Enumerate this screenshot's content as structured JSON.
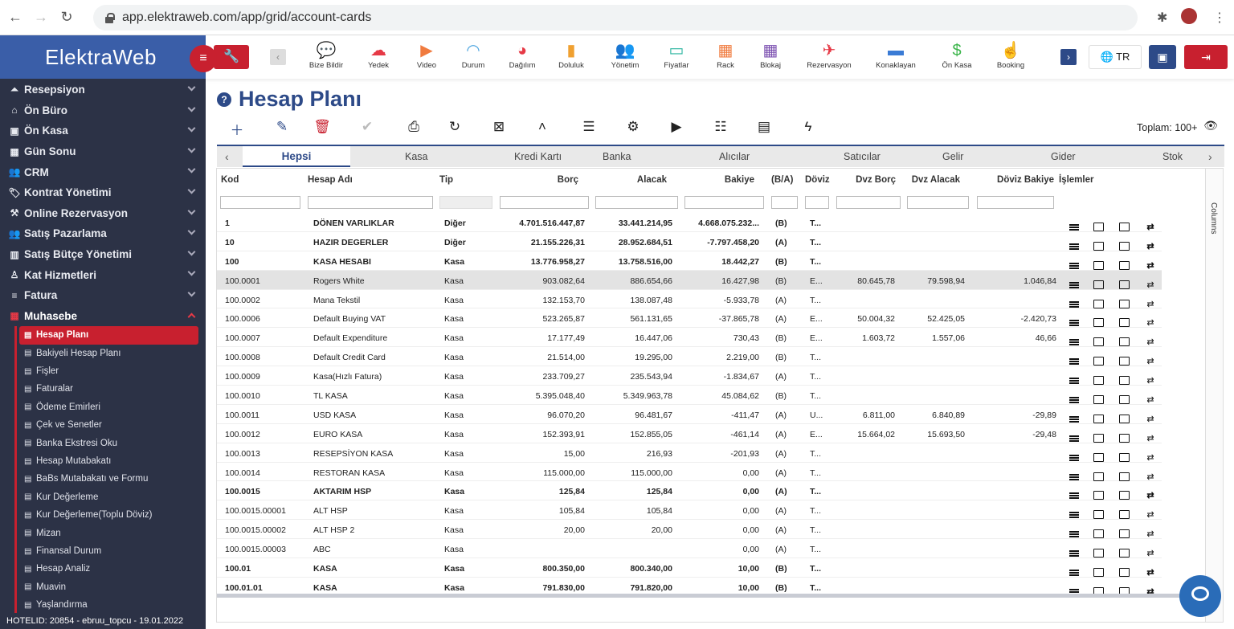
{
  "browser": {
    "url": "app.elektraweb.com/app/grid/account-cards"
  },
  "app": {
    "logo": "ElektraWeb",
    "footer": "HOTELID: 20854 - ebruu_topcu - 19.01.2022"
  },
  "sidebar": {
    "items": [
      {
        "label": "Resepsiyon",
        "icon": "bell-icon"
      },
      {
        "label": "Ön Büro",
        "icon": "home-icon"
      },
      {
        "label": "Ön Kasa",
        "icon": "cash-icon"
      },
      {
        "label": "Gün Sonu",
        "icon": "calendar-icon"
      },
      {
        "label": "CRM",
        "icon": "users-icon"
      },
      {
        "label": "Kontrat Yönetimi",
        "icon": "tag-icon"
      },
      {
        "label": "Online Rezervasyon",
        "icon": "tools-icon"
      },
      {
        "label": "Satış Pazarlama",
        "icon": "users-icon"
      },
      {
        "label": "Satış Bütçe Yönetimi",
        "icon": "chart-icon"
      },
      {
        "label": "Kat Hizmetleri",
        "icon": "person-icon"
      },
      {
        "label": "Fatura",
        "icon": "list-icon"
      },
      {
        "label": "Muhasebe",
        "icon": "grid-icon"
      }
    ],
    "subitems": [
      {
        "label": "Hesap Planı"
      },
      {
        "label": "Bakiyeli Hesap Planı"
      },
      {
        "label": "Fişler"
      },
      {
        "label": "Faturalar"
      },
      {
        "label": "Ödeme Emirleri"
      },
      {
        "label": "Çek ve Senetler"
      },
      {
        "label": "Banka Ekstresi Oku"
      },
      {
        "label": "Hesap Mutabakatı"
      },
      {
        "label": "BaBs Mutabakatı ve Formu"
      },
      {
        "label": "Kur Değerleme"
      },
      {
        "label": "Kur Değerleme(Toplu Döviz)"
      },
      {
        "label": "Mizan"
      },
      {
        "label": "Finansal Durum"
      },
      {
        "label": "Hesap Analiz"
      },
      {
        "label": "Muavin"
      },
      {
        "label": "Yaşlandırma"
      }
    ]
  },
  "toolbar": {
    "items": [
      {
        "label": "Bize Bildir",
        "icon": "chat-icon",
        "color": "#2d4a88"
      },
      {
        "label": "Yedek",
        "icon": "cloud-upload-icon",
        "color": "#e63946"
      },
      {
        "label": "Video",
        "icon": "video-icon",
        "color": "#f07b3f"
      },
      {
        "label": "Durum",
        "icon": "wifi-icon",
        "color": "#4aa3df"
      },
      {
        "label": "Dağılım",
        "icon": "pie-icon",
        "color": "#e63946"
      },
      {
        "label": "Doluluk",
        "icon": "bar-chart-icon",
        "color": "#f0a030"
      },
      {
        "label": "Yönetim",
        "icon": "users-icon",
        "color": "#3a7bd5"
      },
      {
        "label": "Fiyatlar",
        "icon": "price-icon",
        "color": "#2bb5a0"
      },
      {
        "label": "Rack",
        "icon": "rack-icon",
        "color": "#f07b3f"
      },
      {
        "label": "Blokaj",
        "icon": "calendar-icon",
        "color": "#7b4fb0"
      },
      {
        "label": "Rezervasyon",
        "icon": "plane-icon",
        "color": "#e63946"
      },
      {
        "label": "Konaklayan",
        "icon": "bed-icon",
        "color": "#3a7bd5"
      },
      {
        "label": "Ön Kasa",
        "icon": "dollar-icon",
        "color": "#3bb54a"
      },
      {
        "label": "Booking",
        "icon": "hand-icon",
        "color": "#e0508a"
      }
    ],
    "lang": "TR"
  },
  "page": {
    "title": "Hesap Planı",
    "total": "Toplam: 100+"
  },
  "tabs": [
    "Hepsi",
    "Kasa",
    "Kredi Kartı",
    "Banka",
    "Alıcılar",
    "Satıcılar",
    "Gelir",
    "Gider",
    "Stok"
  ],
  "grid": {
    "columns": [
      "Kod",
      "Hesap Adı",
      "Tip",
      "Borç",
      "Alacak",
      "Bakiye",
      "(B/A)",
      "Döviz",
      "Dvz Borç",
      "Dvz Alacak",
      "Döviz Bakiye",
      "İşlemler"
    ],
    "side_label": "Columns",
    "rows": [
      {
        "kod": "1",
        "ad": "DÖNEN VARLIKLAR",
        "tip": "Diğer",
        "borc": "4.701.516.447,87",
        "alacak": "33.441.214,95",
        "bakiye": "4.668.075.232...",
        "ba": "(B)",
        "doviz": "T...",
        "dborc": "",
        "dalacak": "",
        "dbakiye": "",
        "bold": true
      },
      {
        "kod": "10",
        "ad": "HAZIR DEGERLER",
        "tip": "Diğer",
        "borc": "21.155.226,31",
        "alacak": "28.952.684,51",
        "bakiye": "-7.797.458,20",
        "ba": "(A)",
        "doviz": "T...",
        "dborc": "",
        "dalacak": "",
        "dbakiye": "",
        "bold": true
      },
      {
        "kod": "100",
        "ad": "KASA HESABI",
        "tip": "Kasa",
        "borc": "13.776.958,27",
        "alacak": "13.758.516,00",
        "bakiye": "18.442,27",
        "ba": "(B)",
        "doviz": "T...",
        "dborc": "",
        "dalacak": "",
        "dbakiye": "",
        "bold": true
      },
      {
        "kod": "100.0001",
        "ad": "Rogers White",
        "tip": "Kasa",
        "borc": "903.082,64",
        "alacak": "886.654,66",
        "bakiye": "16.427,98",
        "ba": "(B)",
        "doviz": "E...",
        "dborc": "80.645,78",
        "dalacak": "79.598,94",
        "dbakiye": "1.046,84",
        "sel": true
      },
      {
        "kod": "100.0002",
        "ad": "Mana Tekstil",
        "tip": "Kasa",
        "borc": "132.153,70",
        "alacak": "138.087,48",
        "bakiye": "-5.933,78",
        "ba": "(A)",
        "doviz": "T...",
        "dborc": "",
        "dalacak": "",
        "dbakiye": ""
      },
      {
        "kod": "100.0006",
        "ad": "Default Buying VAT",
        "tip": "Kasa",
        "borc": "523.265,87",
        "alacak": "561.131,65",
        "bakiye": "-37.865,78",
        "ba": "(A)",
        "doviz": "E...",
        "dborc": "50.004,32",
        "dalacak": "52.425,05",
        "dbakiye": "-2.420,73"
      },
      {
        "kod": "100.0007",
        "ad": "Default Expenditure",
        "tip": "Kasa",
        "borc": "17.177,49",
        "alacak": "16.447,06",
        "bakiye": "730,43",
        "ba": "(B)",
        "doviz": "E...",
        "dborc": "1.603,72",
        "dalacak": "1.557,06",
        "dbakiye": "46,66"
      },
      {
        "kod": "100.0008",
        "ad": "Default Credit Card",
        "tip": "Kasa",
        "borc": "21.514,00",
        "alacak": "19.295,00",
        "bakiye": "2.219,00",
        "ba": "(B)",
        "doviz": "T...",
        "dborc": "",
        "dalacak": "",
        "dbakiye": ""
      },
      {
        "kod": "100.0009",
        "ad": "Kasa(Hızlı Fatura)",
        "tip": "Kasa",
        "borc": "233.709,27",
        "alacak": "235.543,94",
        "bakiye": "-1.834,67",
        "ba": "(A)",
        "doviz": "T...",
        "dborc": "",
        "dalacak": "",
        "dbakiye": ""
      },
      {
        "kod": "100.0010",
        "ad": "TL KASA",
        "tip": "Kasa",
        "borc": "5.395.048,40",
        "alacak": "5.349.963,78",
        "bakiye": "45.084,62",
        "ba": "(B)",
        "doviz": "T...",
        "dborc": "",
        "dalacak": "",
        "dbakiye": ""
      },
      {
        "kod": "100.0011",
        "ad": "USD KASA",
        "tip": "Kasa",
        "borc": "96.070,20",
        "alacak": "96.481,67",
        "bakiye": "-411,47",
        "ba": "(A)",
        "doviz": "U...",
        "dborc": "6.811,00",
        "dalacak": "6.840,89",
        "dbakiye": "-29,89"
      },
      {
        "kod": "100.0012",
        "ad": "EURO KASA",
        "tip": "Kasa",
        "borc": "152.393,91",
        "alacak": "152.855,05",
        "bakiye": "-461,14",
        "ba": "(A)",
        "doviz": "E...",
        "dborc": "15.664,02",
        "dalacak": "15.693,50",
        "dbakiye": "-29,48"
      },
      {
        "kod": "100.0013",
        "ad": "RESEPSİYON KASA",
        "tip": "Kasa",
        "borc": "15,00",
        "alacak": "216,93",
        "bakiye": "-201,93",
        "ba": "(A)",
        "doviz": "T...",
        "dborc": "",
        "dalacak": "",
        "dbakiye": ""
      },
      {
        "kod": "100.0014",
        "ad": "RESTORAN KASA",
        "tip": "Kasa",
        "borc": "115.000,00",
        "alacak": "115.000,00",
        "bakiye": "0,00",
        "ba": "(A)",
        "doviz": "T...",
        "dborc": "",
        "dalacak": "",
        "dbakiye": ""
      },
      {
        "kod": "100.0015",
        "ad": "AKTARIM HSP",
        "tip": "Kasa",
        "borc": "125,84",
        "alacak": "125,84",
        "bakiye": "0,00",
        "ba": "(A)",
        "doviz": "T...",
        "dborc": "",
        "dalacak": "",
        "dbakiye": "",
        "bold": true
      },
      {
        "kod": "100.0015.00001",
        "ad": "ALT HSP",
        "tip": "Kasa",
        "borc": "105,84",
        "alacak": "105,84",
        "bakiye": "0,00",
        "ba": "(A)",
        "doviz": "T...",
        "dborc": "",
        "dalacak": "",
        "dbakiye": ""
      },
      {
        "kod": "100.0015.00002",
        "ad": "ALT HSP 2",
        "tip": "Kasa",
        "borc": "20,00",
        "alacak": "20,00",
        "bakiye": "0,00",
        "ba": "(A)",
        "doviz": "T...",
        "dborc": "",
        "dalacak": "",
        "dbakiye": ""
      },
      {
        "kod": "100.0015.00003",
        "ad": "ABC",
        "tip": "Kasa",
        "borc": "",
        "alacak": "",
        "bakiye": "0,00",
        "ba": "(A)",
        "doviz": "T...",
        "dborc": "",
        "dalacak": "",
        "dbakiye": ""
      },
      {
        "kod": "100.01",
        "ad": "KASA",
        "tip": "Kasa",
        "borc": "800.350,00",
        "alacak": "800.340,00",
        "bakiye": "10,00",
        "ba": "(B)",
        "doviz": "T...",
        "dborc": "",
        "dalacak": "",
        "dbakiye": "",
        "bold": true
      },
      {
        "kod": "100.01.01",
        "ad": "KASA",
        "tip": "Kasa",
        "borc": "791.830,00",
        "alacak": "791.820,00",
        "bakiye": "10,00",
        "ba": "(B)",
        "doviz": "T...",
        "dborc": "",
        "dalacak": "",
        "dbakiye": "",
        "bold": true
      }
    ]
  }
}
